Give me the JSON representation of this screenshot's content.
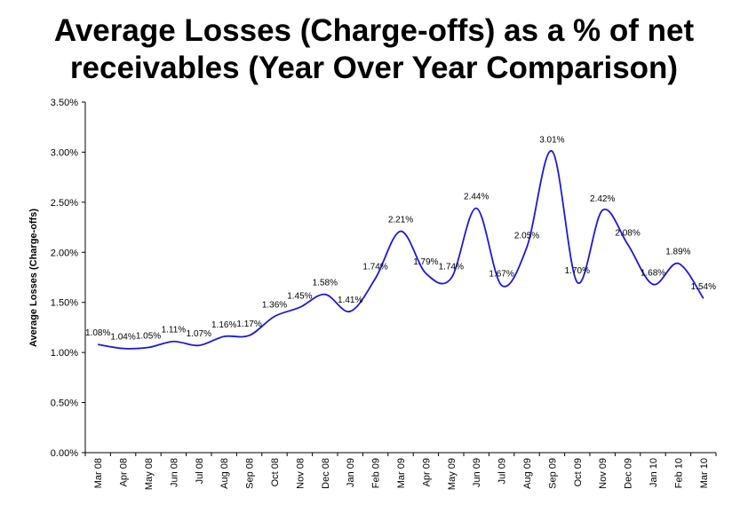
{
  "chart_data": {
    "type": "line",
    "title": "Average Losses (Charge-offs) as a % of net receivables (Year Over Year Comparison)",
    "title_lines": [
      "Average Losses (Charge-offs) as a % of net",
      "receivables (Year Over Year Comparison)"
    ],
    "xlabel": "",
    "ylabel": "Average Losses (Charge-offs)",
    "ylim": [
      0,
      3.5
    ],
    "y_ticks": [
      "0.00%",
      "0.50%",
      "1.00%",
      "1.50%",
      "2.00%",
      "2.50%",
      "3.00%",
      "3.50%"
    ],
    "y_tick_values": [
      0,
      0.5,
      1.0,
      1.5,
      2.0,
      2.5,
      3.0,
      3.5
    ],
    "grid": false,
    "legend": "none",
    "line_color": "#1a1ad6",
    "categories": [
      "Mar 08",
      "Apr 08",
      "May 08",
      "Jun 08",
      "Jul 08",
      "Aug 08",
      "Sep 08",
      "Oct 08",
      "Nov 08",
      "Dec 08",
      "Jan 09",
      "Feb 09",
      "Mar 09",
      "Apr 09",
      "May 09",
      "Jun 09",
      "Jul 09",
      "Aug 09",
      "Sep 09",
      "Oct 09",
      "Nov 09",
      "Dec 09",
      "Jan 10",
      "Feb 10",
      "Mar 10"
    ],
    "values": [
      1.08,
      1.04,
      1.05,
      1.11,
      1.07,
      1.16,
      1.17,
      1.36,
      1.45,
      1.58,
      1.41,
      1.74,
      2.21,
      1.79,
      1.74,
      2.44,
      1.67,
      2.05,
      3.01,
      1.7,
      2.42,
      2.08,
      1.68,
      1.89,
      1.54
    ],
    "data_labels": [
      "1.08%",
      "1.04%",
      "1.05%",
      "1.11%",
      "1.07%",
      "1.16%",
      "1.17%",
      "1.36%",
      "1.45%",
      "1.58%",
      "1.41%",
      "1.74%",
      "2.21%",
      "1.79%",
      "1.74%",
      "2.44%",
      "1.67%",
      "2.05%",
      "3.01%",
      "1.70%",
      "2.42%",
      "2.08%",
      "1.68%",
      "1.89%",
      "1.54%"
    ]
  }
}
